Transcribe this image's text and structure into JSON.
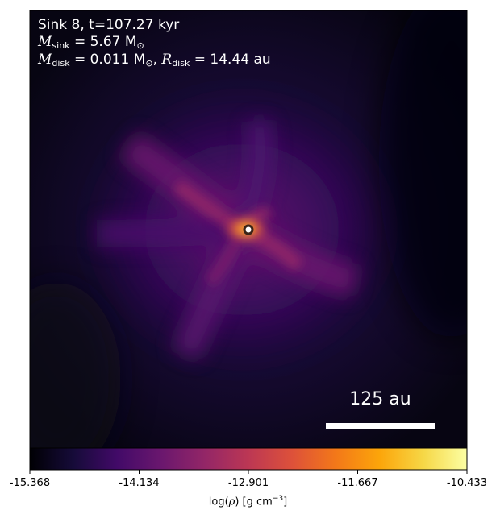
{
  "annotations": {
    "sink_line": "Sink 8, t=107.27 kyr",
    "m_sink_symbol": "M",
    "m_sink_sub": "sink",
    "m_sink_value": " = 5.67 M",
    "m_sink_unit_sub": "⊙",
    "m_disk_symbol": "M",
    "m_disk_sub": "disk",
    "m_disk_value": " = 0.011 M",
    "m_disk_unit_sub": "⊙",
    "r_disk_sep": ", ",
    "r_disk_symbol": "R",
    "r_disk_sub": "disk",
    "r_disk_value": " = 14.44 au"
  },
  "scale_bar": {
    "label": "125 au"
  },
  "colorbar": {
    "ticks": [
      "-15.368",
      "-14.134",
      "-12.901",
      "-11.667",
      "-10.433"
    ],
    "label_prefix": "log(",
    "label_rho": "ρ",
    "label_mid": ") [g cm",
    "label_exp": "−3",
    "label_suffix": "]",
    "colormap": "inferno"
  },
  "colors": {
    "background_dark": "#0b0716",
    "filament": "#5a1a8a",
    "core": "#f78410",
    "scale_bar": "#ffffff"
  }
}
